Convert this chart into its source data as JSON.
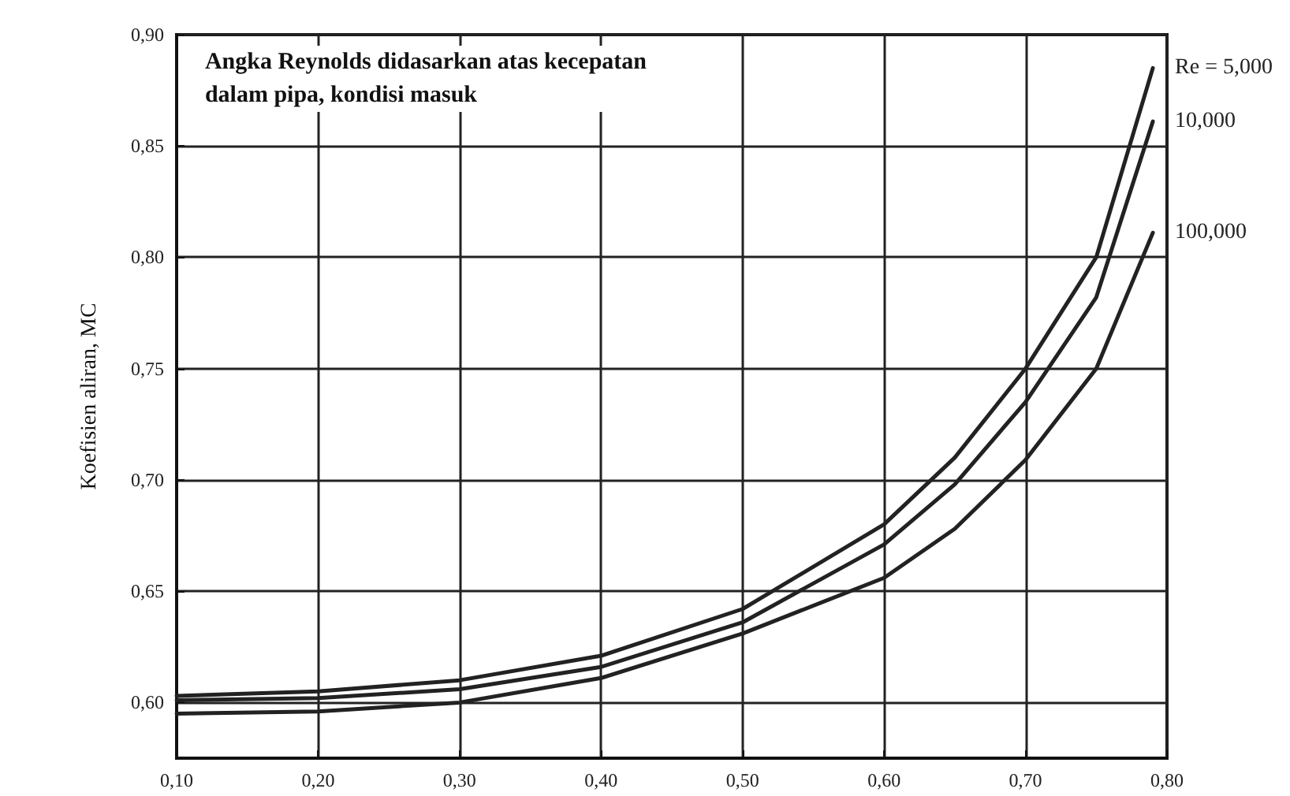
{
  "chart_data": {
    "type": "line",
    "ylabel": "Koefisien aliran, MC",
    "annotations": [
      "Angka Reynolds didasarkan atas kecepatan\ndalam pipa, kondisi masuk"
    ],
    "x": [
      0.1,
      0.2,
      0.3,
      0.4,
      0.5,
      0.6,
      0.65,
      0.7,
      0.75,
      0.79
    ],
    "series": [
      {
        "name": "Re = 5,000",
        "color": "#222222",
        "values": [
          0.603,
          0.605,
          0.61,
          0.621,
          0.642,
          0.68,
          0.71,
          0.75,
          0.8,
          0.885
        ]
      },
      {
        "name": "10,000",
        "color": "#222222",
        "values": [
          0.601,
          0.602,
          0.606,
          0.616,
          0.636,
          0.671,
          0.698,
          0.735,
          0.782,
          0.861
        ]
      },
      {
        "name": "100,000",
        "color": "#222222",
        "values": [
          0.595,
          0.596,
          0.6,
          0.611,
          0.631,
          0.656,
          0.678,
          0.709,
          0.75,
          0.811
        ]
      }
    ],
    "xlim": [
      0.1,
      0.8
    ],
    "xticks": [
      {
        "value": 0.1,
        "label": "0,10"
      },
      {
        "value": 0.2,
        "label": "0,20"
      },
      {
        "value": 0.3,
        "label": "0,30"
      },
      {
        "value": 0.4,
        "label": "0,40"
      },
      {
        "value": 0.5,
        "label": "0,50"
      },
      {
        "value": 0.6,
        "label": "0,60"
      },
      {
        "value": 0.7,
        "label": "0,70"
      },
      {
        "value": 0.8,
        "label": "0,80"
      }
    ],
    "ylim": [
      0.575,
      0.9
    ],
    "yticks": [
      {
        "value": 0.6,
        "label": "0,60"
      },
      {
        "value": 0.65,
        "label": "0,65"
      },
      {
        "value": 0.7,
        "label": "0,70"
      },
      {
        "value": 0.75,
        "label": "0,75"
      },
      {
        "value": 0.8,
        "label": "0,80"
      },
      {
        "value": 0.85,
        "label": "0,85"
      },
      {
        "value": 0.9,
        "label": "0,90"
      }
    ],
    "grid": true,
    "legend": false,
    "marker": "none",
    "line_style": "solid"
  }
}
